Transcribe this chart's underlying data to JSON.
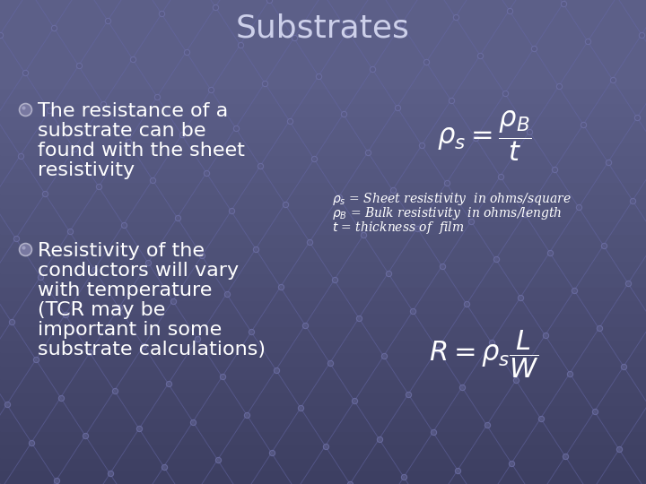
{
  "title": "Substrates",
  "title_fontsize": 26,
  "title_color": "#cdd0ea",
  "bg_color": "#5c5f88",
  "bg_color_bottom": "#3d3f62",
  "text_color": "#ffffff",
  "text_fontsize": 16,
  "bullet1_text": [
    "The resistance of a",
    "substrate can be",
    "found with the sheet",
    "resistivity"
  ],
  "bullet2_text": [
    "Resistivity of the",
    "conductors will vary",
    "with temperature",
    "(TCR may be",
    "important in some",
    "substrate calculations)"
  ],
  "formula1_fontsize": 22,
  "legend_fontsize": 10,
  "formula2_fontsize": 22,
  "bullet_face": "#888aaa",
  "bullet_edge": "#aaaacc",
  "grid_color": "#5557820",
  "dot_color": "#555880",
  "line_color": "#6668a0"
}
